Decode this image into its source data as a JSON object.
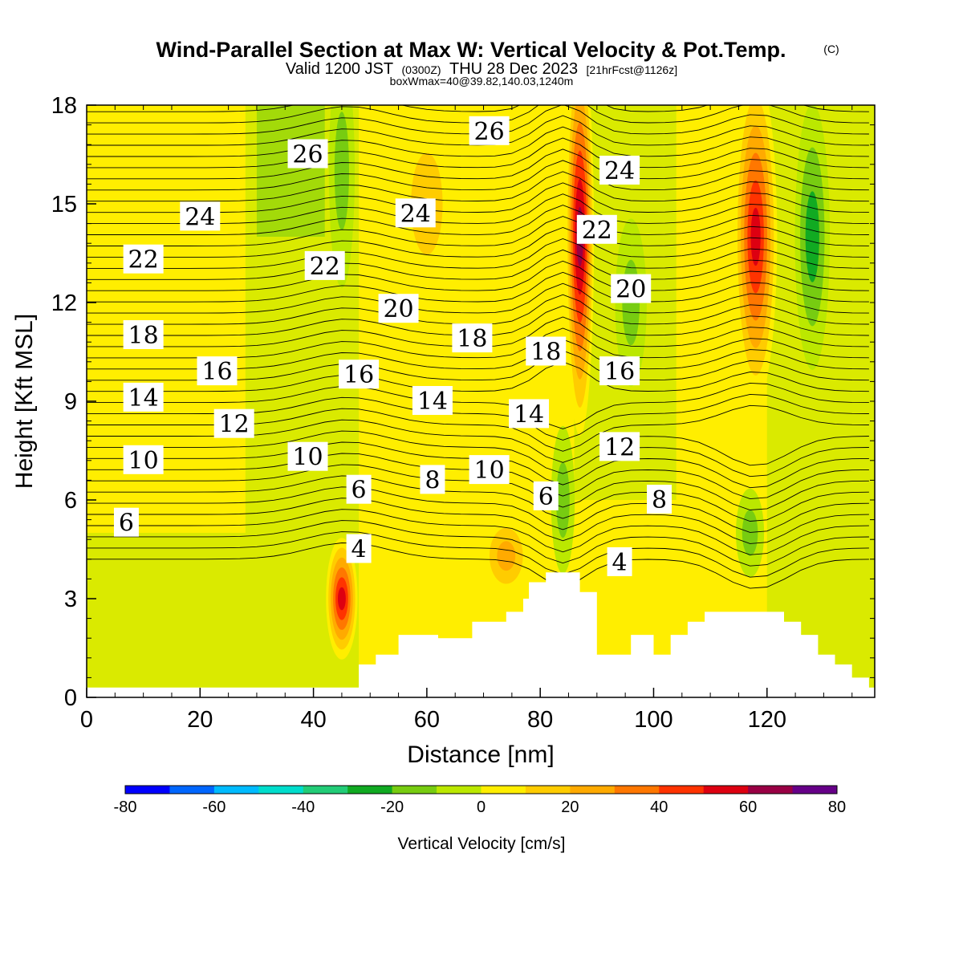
{
  "chart_data": {
    "type": "heatmap",
    "title": "Wind-Parallel Section at Max W: Vertical Velocity & Pot.Temp.",
    "copyright": "(C)",
    "subtitle_main": "Valid 1200 JST",
    "subtitle_utc": "(0300Z)",
    "subtitle_date": "THU 28 Dec 2023",
    "subtitle_fcst": "[21hrFcst@1126z]",
    "box_info": "boxWmax=40@39.82,140.03,1240m",
    "xlabel": "Distance [nm]",
    "ylabel": "Height [Kft MSL]",
    "xlim": [
      0,
      139
    ],
    "ylim": [
      0,
      18
    ],
    "x_ticks": [
      0,
      20,
      40,
      60,
      80,
      100,
      120
    ],
    "y_ticks": [
      0,
      3,
      6,
      9,
      12,
      15,
      18
    ],
    "colorbar": {
      "label": "Vertical Velocity [cm/s]",
      "ticks": [
        -80,
        -60,
        -40,
        -20,
        0,
        20,
        40,
        60,
        80
      ],
      "bins": [
        {
          "min": -80,
          "max": -70,
          "color": "#0000ff"
        },
        {
          "min": -70,
          "max": -60,
          "color": "#0066ff"
        },
        {
          "min": -60,
          "max": -50,
          "color": "#00bbff"
        },
        {
          "min": -50,
          "max": -40,
          "color": "#00ddcc"
        },
        {
          "min": -40,
          "max": -30,
          "color": "#22cc77"
        },
        {
          "min": -30,
          "max": -20,
          "color": "#11aa22"
        },
        {
          "min": -20,
          "max": -10,
          "color": "#77cc11"
        },
        {
          "min": -10,
          "max": 0,
          "color": "#bbe800"
        },
        {
          "min": 0,
          "max": 10,
          "color": "#ffee00"
        },
        {
          "min": 10,
          "max": 20,
          "color": "#ffcc00"
        },
        {
          "min": 20,
          "max": 30,
          "color": "#ffaa00"
        },
        {
          "min": 30,
          "max": 40,
          "color": "#ff7700"
        },
        {
          "min": 40,
          "max": 50,
          "color": "#ff3300"
        },
        {
          "min": 50,
          "max": 60,
          "color": "#dd0011"
        },
        {
          "min": 60,
          "max": 70,
          "color": "#990044"
        },
        {
          "min": 70,
          "max": 80,
          "color": "#660088"
        }
      ]
    },
    "terrain_kft": [
      [
        0,
        0.3
      ],
      [
        48,
        0.3
      ],
      [
        48,
        1.0
      ],
      [
        51,
        1.0
      ],
      [
        51,
        1.3
      ],
      [
        55,
        1.3
      ],
      [
        55,
        1.9
      ],
      [
        62,
        1.9
      ],
      [
        62,
        1.8
      ],
      [
        68,
        1.8
      ],
      [
        68,
        2.3
      ],
      [
        74,
        2.3
      ],
      [
        74,
        2.6
      ],
      [
        77,
        2.6
      ],
      [
        77,
        3.0
      ],
      [
        78,
        3.0
      ],
      [
        78,
        3.5
      ],
      [
        81,
        3.5
      ],
      [
        81,
        3.8
      ],
      [
        87,
        3.8
      ],
      [
        87,
        3.2
      ],
      [
        90,
        3.2
      ],
      [
        90,
        1.3
      ],
      [
        96,
        1.3
      ],
      [
        96,
        1.9
      ],
      [
        100,
        1.9
      ],
      [
        100,
        1.3
      ],
      [
        103,
        1.3
      ],
      [
        103,
        1.9
      ],
      [
        106,
        1.9
      ],
      [
        106,
        2.3
      ],
      [
        109,
        2.3
      ],
      [
        109,
        2.6
      ],
      [
        123,
        2.6
      ],
      [
        123,
        2.3
      ],
      [
        126,
        2.3
      ],
      [
        126,
        1.9
      ],
      [
        129,
        1.9
      ],
      [
        129,
        1.3
      ],
      [
        132,
        1.3
      ],
      [
        132,
        1.0
      ],
      [
        135,
        1.0
      ],
      [
        135,
        0.6
      ],
      [
        138,
        0.6
      ],
      [
        138,
        0.3
      ],
      [
        139,
        0.3
      ]
    ],
    "w_features": [
      {
        "x": 45,
        "z": 3.0,
        "w": 60
      },
      {
        "x": 74,
        "z": 4.3,
        "w": 30
      },
      {
        "x": 87,
        "z": 14,
        "w": 70
      },
      {
        "x": 118,
        "z": 14,
        "w": 60
      },
      {
        "x": 60,
        "z": 15,
        "w": 25
      },
      {
        "x": 45,
        "z": 16,
        "w": -25
      },
      {
        "x": 84,
        "z": 6,
        "w": -25
      },
      {
        "x": 117,
        "z": 5,
        "w": -25
      },
      {
        "x": 128,
        "z": 14,
        "w": -30
      },
      {
        "x": 96,
        "z": 12,
        "w": -20
      }
    ],
    "theta_labels": [
      {
        "text": "26",
        "x": 39,
        "z": 16.5
      },
      {
        "text": "26",
        "x": 71,
        "z": 17.2
      },
      {
        "text": "24",
        "x": 20,
        "z": 14.6
      },
      {
        "text": "24",
        "x": 58,
        "z": 14.7
      },
      {
        "text": "24",
        "x": 94,
        "z": 16.0
      },
      {
        "text": "22",
        "x": 10,
        "z": 13.3
      },
      {
        "text": "22",
        "x": 42,
        "z": 13.1
      },
      {
        "text": "22",
        "x": 90,
        "z": 14.2
      },
      {
        "text": "20",
        "x": 55,
        "z": 11.8
      },
      {
        "text": "20",
        "x": 96,
        "z": 12.4
      },
      {
        "text": "18",
        "x": 10,
        "z": 11.0
      },
      {
        "text": "18",
        "x": 68,
        "z": 10.9
      },
      {
        "text": "18",
        "x": 81,
        "z": 10.5
      },
      {
        "text": "16",
        "x": 23,
        "z": 9.9
      },
      {
        "text": "16",
        "x": 48,
        "z": 9.8
      },
      {
        "text": "16",
        "x": 94,
        "z": 9.9
      },
      {
        "text": "14",
        "x": 10,
        "z": 9.1
      },
      {
        "text": "14",
        "x": 61,
        "z": 9.0
      },
      {
        "text": "14",
        "x": 78,
        "z": 8.6
      },
      {
        "text": "12",
        "x": 26,
        "z": 8.3
      },
      {
        "text": "12",
        "x": 94,
        "z": 7.6
      },
      {
        "text": "10",
        "x": 10,
        "z": 7.2
      },
      {
        "text": "10",
        "x": 39,
        "z": 7.3
      },
      {
        "text": "10",
        "x": 71,
        "z": 6.9
      },
      {
        "text": "8",
        "x": 61,
        "z": 6.6
      },
      {
        "text": "8",
        "x": 101,
        "z": 6.0
      },
      {
        "text": "6",
        "x": 7,
        "z": 5.3
      },
      {
        "text": "6",
        "x": 48,
        "z": 6.3
      },
      {
        "text": "6",
        "x": 81,
        "z": 6.1
      },
      {
        "text": "4",
        "x": 48,
        "z": 4.5
      },
      {
        "text": "4",
        "x": 94,
        "z": 4.1
      }
    ]
  }
}
